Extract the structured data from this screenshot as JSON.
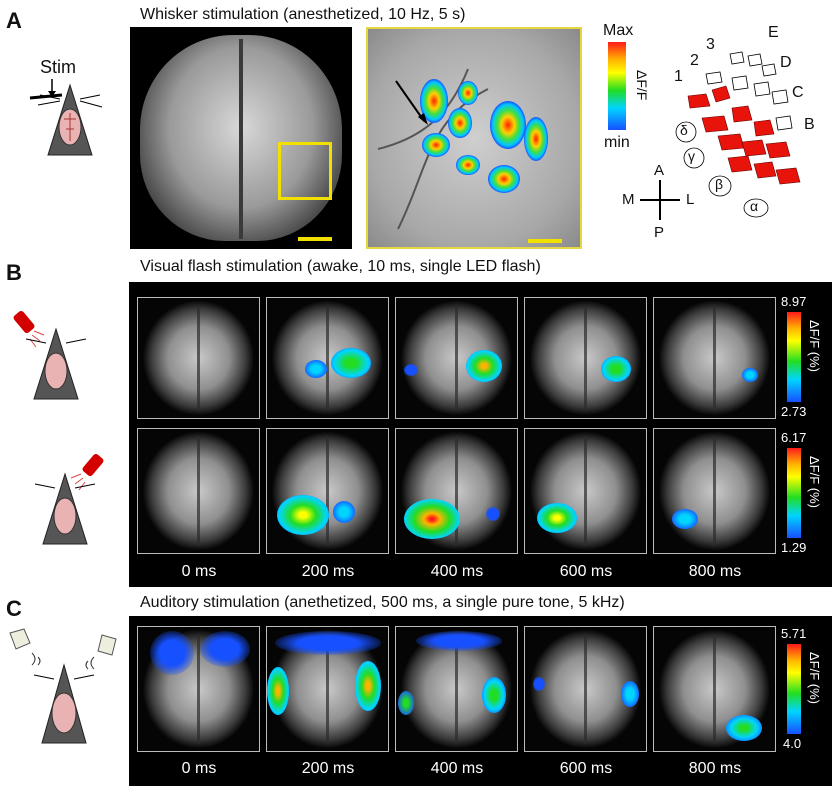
{
  "panels": {
    "A": {
      "label": "A",
      "title": "Whisker stimulation (anesthetized, 10 Hz, 5 s)",
      "stim_label": "Stim",
      "colorbar": {
        "max": "Max",
        "min": "min",
        "label": "ΔF/F"
      },
      "barrel_rows": [
        "E",
        "D",
        "C",
        "B"
      ],
      "barrel_arcs": [
        "1",
        "2",
        "3"
      ],
      "greek": [
        "δ",
        "γ",
        "β",
        "α"
      ],
      "compass": {
        "A": "A",
        "P": "P",
        "M": "M",
        "L": "L"
      }
    },
    "B": {
      "label": "B",
      "title": "Visual flash stimulation (awake, 10 ms, single LED flash)",
      "rows": [
        {
          "cbar_max": "8.97",
          "cbar_min": "2.73",
          "cbar_label": "ΔF/F (%)"
        },
        {
          "cbar_max": "6.17",
          "cbar_min": "1.29",
          "cbar_label": "ΔF/F (%)"
        }
      ],
      "times": [
        "0 ms",
        "200 ms",
        "400 ms",
        "600 ms",
        "800 ms"
      ]
    },
    "C": {
      "label": "C",
      "title": "Auditory stimulation (anethetized, 500 ms, a single pure tone, 5 kHz)",
      "cbar_max": "5.71",
      "cbar_min": "4.0",
      "cbar_label": "ΔF/F (%)",
      "times": [
        "0 ms",
        "200 ms",
        "400 ms",
        "600 ms",
        "800 ms"
      ]
    }
  },
  "colors": {
    "accent_box": "#f2e000",
    "barrel_active": "#e8140c"
  }
}
